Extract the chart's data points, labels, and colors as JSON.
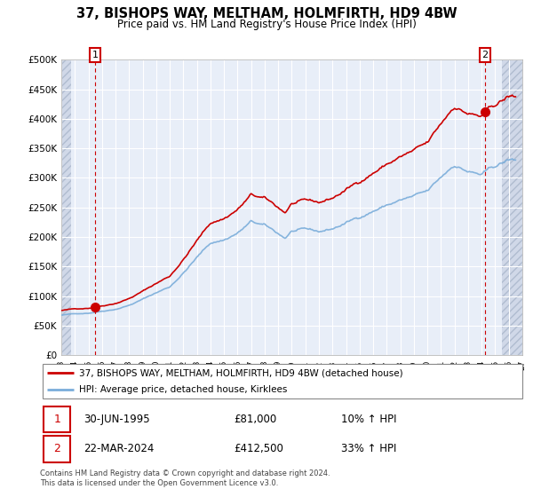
{
  "title": "37, BISHOPS WAY, MELTHAM, HOLMFIRTH, HD9 4BW",
  "subtitle": "Price paid vs. HM Land Registry's House Price Index (HPI)",
  "legend_line1": "37, BISHOPS WAY, MELTHAM, HOLMFIRTH, HD9 4BW (detached house)",
  "legend_line2": "HPI: Average price, detached house, Kirklees",
  "sale1_date": "30-JUN-1995",
  "sale1_price": "£81,000",
  "sale1_hpi": "10% ↑ HPI",
  "sale2_date": "22-MAR-2024",
  "sale2_price": "£412,500",
  "sale2_hpi": "33% ↑ HPI",
  "footer": "Contains HM Land Registry data © Crown copyright and database right 2024.\nThis data is licensed under the Open Government Licence v3.0.",
  "sale1_x": 1995.5,
  "sale1_y": 81000,
  "sale2_x": 2024.25,
  "sale2_y": 412500,
  "ylim": [
    0,
    500000
  ],
  "xlim": [
    1993.0,
    2027.0
  ],
  "plot_bg": "#e8eef8",
  "hatch_bg": "#d0d8e8",
  "grid_color": "#ffffff",
  "red_color": "#cc0000",
  "blue_color": "#7aadda",
  "box_edge_color": "#cc0000"
}
